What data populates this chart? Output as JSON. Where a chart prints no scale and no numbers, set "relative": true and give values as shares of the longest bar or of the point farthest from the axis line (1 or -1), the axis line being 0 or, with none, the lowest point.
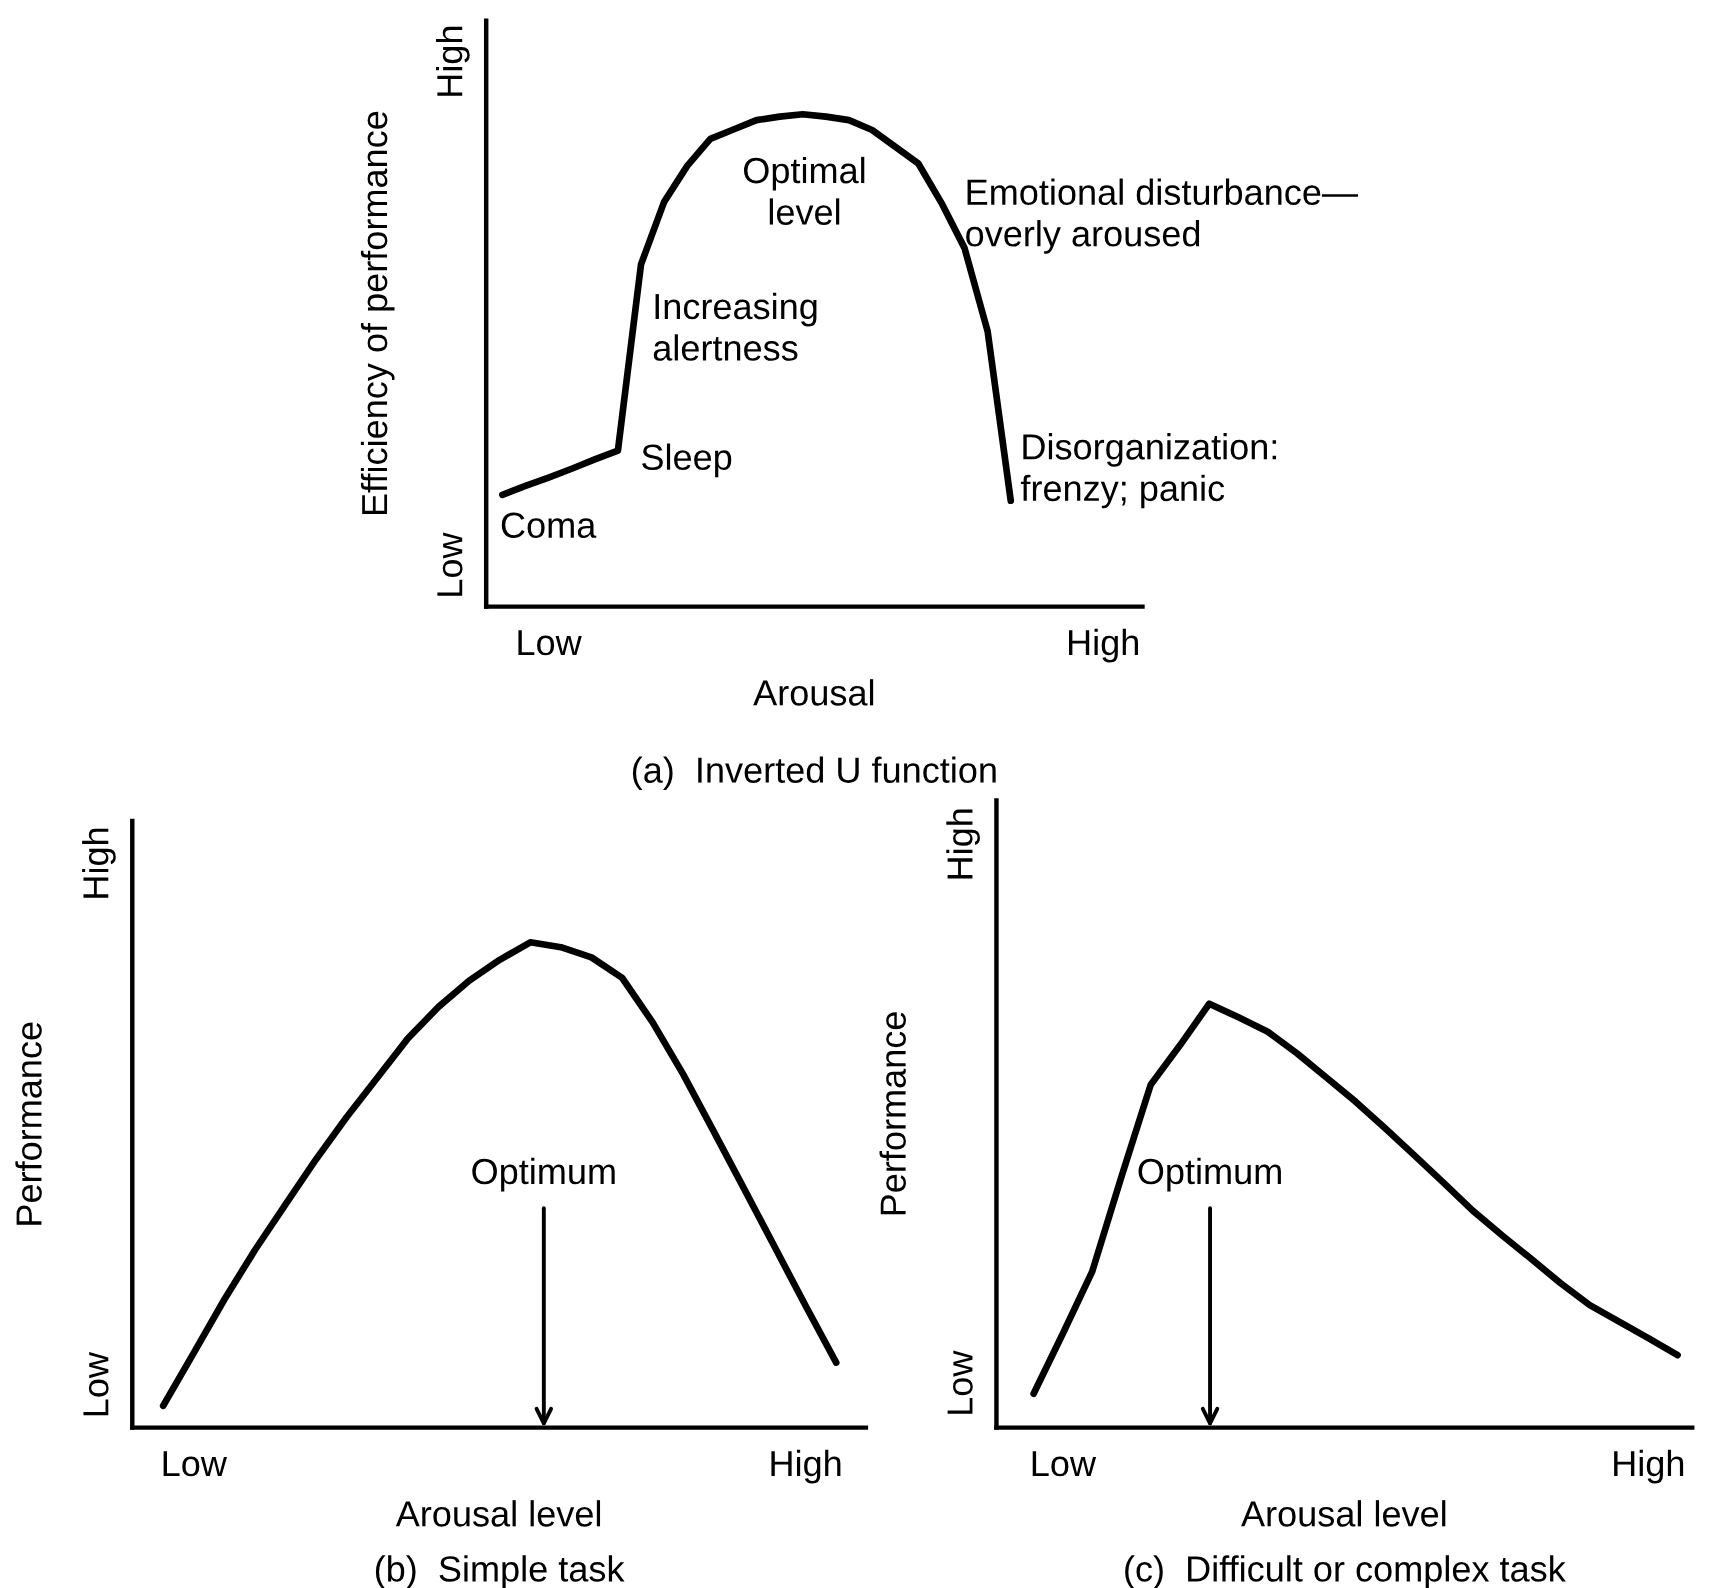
{
  "chart_data": [
    {
      "type": "line",
      "relative": true,
      "title": "(a)  Inverted U function",
      "xlabel": "Arousal",
      "ylabel": "Efficiency of performance",
      "marker": "none",
      "line_style": "solid",
      "categories": [
        null,
        null,
        "Low",
        null,
        null,
        null,
        null,
        null,
        null,
        null,
        null,
        null,
        null,
        null,
        null,
        null,
        null,
        null,
        null,
        null,
        null,
        null,
        null,
        null,
        null,
        null,
        "High"
      ],
      "series": [
        {
          "color": "#000000",
          "values": [
            0.227,
            0.245,
            0.262,
            0.28,
            0.299,
            0.317,
            0.695,
            0.822,
            0.895,
            0.95,
            0.969,
            0.988,
            0.995,
            1.0,
            0.995,
            0.988,
            0.968,
            0.934,
            0.9,
            0.82,
            0.728,
            0.559,
            0.215,
            null,
            null,
            null,
            null
          ]
        }
      ],
      "annotations": [
        "Low",
        "High",
        "Coma",
        "Sleep",
        "Increasing\nalertness",
        "Optimal\nlevel",
        "Emotional disturbance—\noverly aroused",
        "Disorganization:\nfrenzy; panic"
      ]
    },
    {
      "type": "line",
      "relative": true,
      "title": "(b)  Simple task",
      "xlabel": "Arousal level",
      "ylabel": "Performance",
      "marker": "none",
      "line_style": "solid",
      "categories": [
        null,
        "Low",
        null,
        null,
        null,
        null,
        null,
        null,
        null,
        null,
        null,
        null,
        null,
        null,
        null,
        null,
        null,
        null,
        null,
        null,
        null,
        "High",
        null
      ],
      "series": [
        {
          "color": "#000000",
          "values": [
            0.045,
            0.154,
            0.264,
            0.366,
            0.46,
            0.553,
            0.64,
            0.721,
            0.802,
            0.867,
            0.921,
            0.964,
            1.0,
            0.99,
            0.969,
            0.927,
            0.835,
            0.728,
            0.61,
            0.491,
            0.371,
            0.251,
            0.134
          ]
        }
      ],
      "annotations": [
        "Low",
        "High",
        "Optimum"
      ]
    },
    {
      "type": "line",
      "relative": true,
      "title": "(c)  Difficult or complex task",
      "xlabel": "Arousal level",
      "ylabel": "Performance",
      "marker": "none",
      "line_style": "solid",
      "categories": [
        null,
        "Low",
        null,
        null,
        null,
        null,
        null,
        null,
        null,
        null,
        null,
        null,
        null,
        null,
        null,
        null,
        null,
        null,
        null,
        null,
        null,
        "High",
        null
      ],
      "series": [
        {
          "color": "#000000",
          "values": [
            0.08,
            0.222,
            0.368,
            0.592,
            0.809,
            0.902,
            1.0,
            0.968,
            0.934,
            0.883,
            0.826,
            0.769,
            0.707,
            0.643,
            0.578,
            0.512,
            0.454,
            0.398,
            0.341,
            0.289,
            0.25,
            0.211,
            0.171
          ]
        }
      ],
      "annotations": [
        "Low",
        "High",
        "Optimum"
      ]
    }
  ]
}
